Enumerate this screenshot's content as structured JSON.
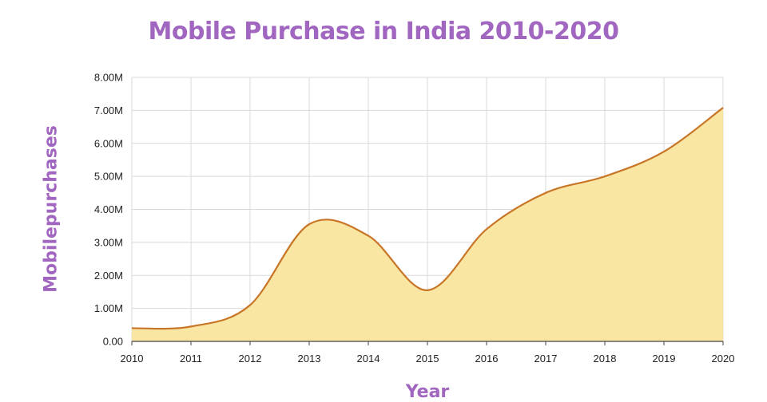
{
  "chart_data": {
    "type": "area",
    "title": "Mobile Purchase in India 2010-2020",
    "xlabel": "Year",
    "ylabel": "Mobilepurchases",
    "x": [
      "2010",
      "2011",
      "2012",
      "2013",
      "2014",
      "2015",
      "2016",
      "2017",
      "2018",
      "2019",
      "2020"
    ],
    "series": [
      {
        "values": [
          400000,
          450000,
          1100000,
          3550000,
          3200000,
          1550000,
          3400000,
          4500000,
          5000000,
          5750000,
          7080000
        ]
      }
    ],
    "ylim": [
      0,
      8000000
    ],
    "y_ticks": [
      0,
      1000000,
      2000000,
      3000000,
      4000000,
      5000000,
      6000000,
      7000000,
      8000000
    ],
    "y_tick_labels": [
      "0.00",
      "1.00M",
      "2.00M",
      "3.00M",
      "4.00M",
      "5.00M",
      "6.00M",
      "7.00M",
      "8.00M"
    ],
    "grid": true,
    "colors": {
      "line": "#c87527",
      "fill": "#f9e6a2",
      "grid": "#d9d9d9",
      "title": "#a066c0"
    }
  }
}
